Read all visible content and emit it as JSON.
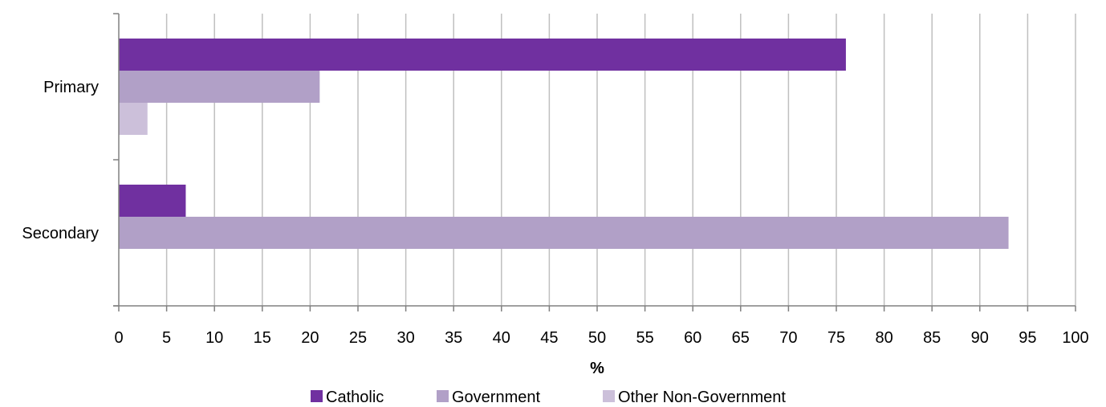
{
  "chart_data": {
    "type": "bar",
    "orientation": "horizontal",
    "categories": [
      "Primary",
      "Secondary"
    ],
    "series": [
      {
        "name": "Catholic",
        "values": [
          76,
          7
        ],
        "color": "#7030A0"
      },
      {
        "name": "Government",
        "values": [
          21,
          93
        ],
        "color": "#B1A0C7"
      },
      {
        "name": "Other Non-Government",
        "values": [
          3,
          0
        ],
        "color": "#CCC0DA"
      }
    ],
    "xlabel": "%",
    "xlim": [
      0,
      100
    ],
    "x_ticks": [
      "0",
      "5",
      "10",
      "15",
      "20",
      "25",
      "30",
      "35",
      "40",
      "45",
      "50",
      "55",
      "60",
      "65",
      "70",
      "75",
      "80",
      "85",
      "90",
      "95",
      "100"
    ],
    "grid": "vertical",
    "legend_position": "bottom"
  }
}
